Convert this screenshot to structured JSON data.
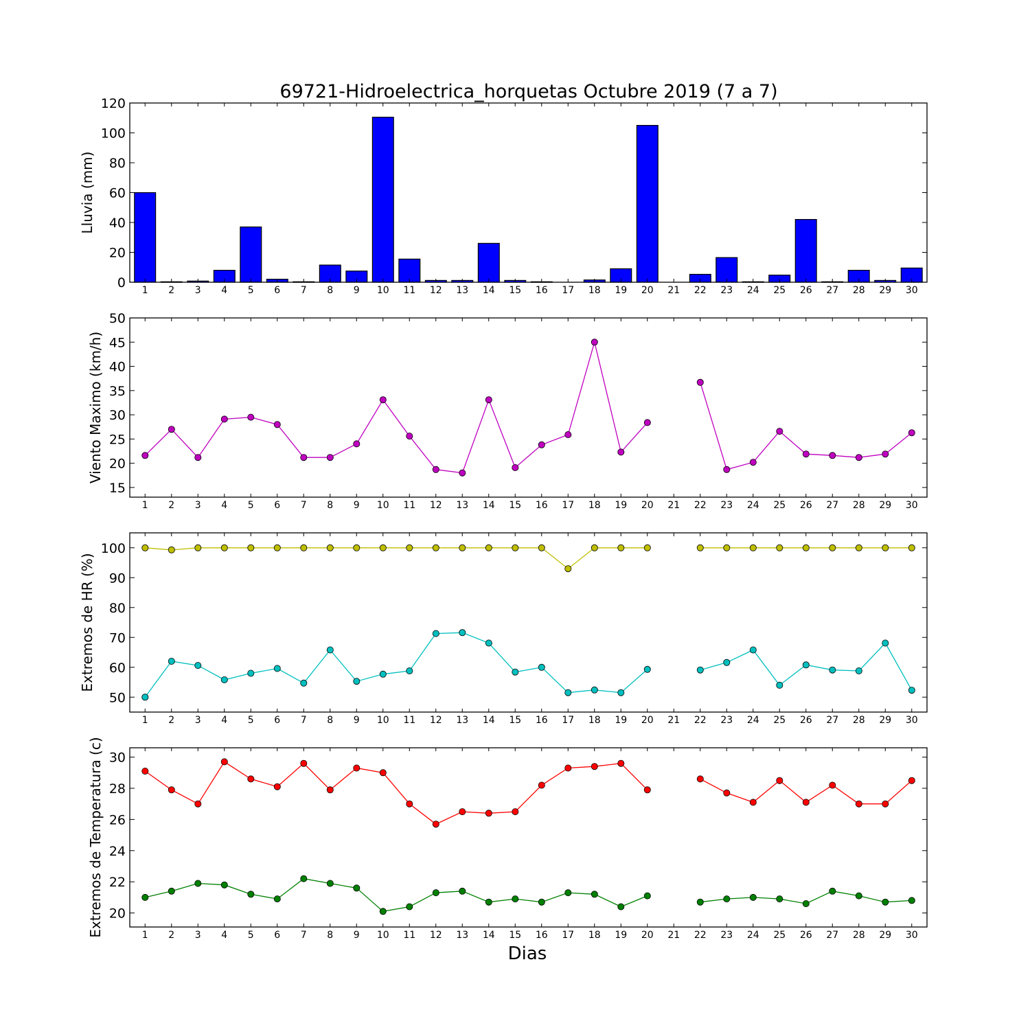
{
  "figure": {
    "title": "69721-Hidroelectrica_horquetas Octubre 2019  (7 a 7)",
    "xlabel": "Dias"
  },
  "chart_data": [
    {
      "type": "bar",
      "ylabel": "Lluvia (mm)",
      "ylim": [
        0,
        120
      ],
      "yticks": [
        0,
        20,
        40,
        60,
        80,
        100,
        120
      ],
      "categories": [
        1,
        2,
        3,
        4,
        5,
        6,
        7,
        8,
        9,
        10,
        11,
        12,
        13,
        14,
        15,
        16,
        17,
        18,
        19,
        20,
        21,
        22,
        23,
        24,
        25,
        26,
        27,
        28,
        29,
        30
      ],
      "series": [
        {
          "color": "#0000ff",
          "values": [
            60,
            0.3,
            0.8,
            8,
            37,
            2,
            0.3,
            11.5,
            7.5,
            110.5,
            15.5,
            1.2,
            1.2,
            26,
            1.2,
            0.3,
            0,
            1.5,
            9,
            105,
            0,
            5.3,
            16.5,
            0.3,
            4.8,
            42,
            0.3,
            8,
            1.2,
            9.5
          ]
        }
      ],
      "grid": false
    },
    {
      "type": "line",
      "ylabel": "Viento Maximo (km/h)",
      "ylim": [
        13,
        50
      ],
      "yticks": [
        15,
        20,
        25,
        30,
        35,
        40,
        45,
        50
      ],
      "x": [
        1,
        2,
        3,
        4,
        5,
        6,
        7,
        8,
        9,
        10,
        11,
        12,
        13,
        14,
        15,
        16,
        17,
        18,
        19,
        20,
        21,
        22,
        23,
        24,
        25,
        26,
        27,
        28,
        29,
        30
      ],
      "series": [
        {
          "color": "#bf00bf",
          "values": [
            21.6,
            27,
            21.2,
            29.1,
            29.5,
            28,
            21.2,
            21.2,
            24,
            33.1,
            25.6,
            18.7,
            18,
            33.1,
            19.1,
            23.8,
            25.9,
            45,
            22.3,
            28.4,
            null,
            36.7,
            18.7,
            20.2,
            26.6,
            21.9,
            21.6,
            21.2,
            21.9,
            26.3
          ]
        }
      ],
      "grid": false
    },
    {
      "type": "line",
      "ylabel": "Extremos de HR (%)",
      "ylim": [
        45,
        105
      ],
      "yticks": [
        50,
        60,
        70,
        80,
        90,
        100
      ],
      "x": [
        1,
        2,
        3,
        4,
        5,
        6,
        7,
        8,
        9,
        10,
        11,
        12,
        13,
        14,
        15,
        16,
        17,
        18,
        19,
        20,
        21,
        22,
        23,
        24,
        25,
        26,
        27,
        28,
        29,
        30
      ],
      "series": [
        {
          "color": "#bfbf00",
          "values": [
            100,
            99.3,
            100,
            100,
            100,
            100,
            100,
            100,
            100,
            100,
            100,
            100,
            100,
            100,
            100,
            100,
            93,
            100,
            100,
            100,
            null,
            100,
            100,
            100,
            100,
            100,
            100,
            100,
            100,
            100
          ]
        },
        {
          "color": "#00bfbf",
          "values": [
            50,
            62,
            60.6,
            55.8,
            58,
            59.6,
            54.7,
            65.8,
            55.3,
            57.7,
            58.8,
            71.3,
            71.6,
            68.1,
            58.4,
            60,
            51.5,
            52.4,
            51.5,
            59.3,
            null,
            59.1,
            61.6,
            65.8,
            54,
            60.8,
            59.1,
            58.8,
            68.1,
            52.3
          ]
        }
      ],
      "grid": false
    },
    {
      "type": "line",
      "ylabel": "Extremos de Temperatura (c)",
      "ylim": [
        19.1,
        30.6
      ],
      "yticks": [
        20,
        22,
        24,
        26,
        28,
        30
      ],
      "x": [
        1,
        2,
        3,
        4,
        5,
        6,
        7,
        8,
        9,
        10,
        11,
        12,
        13,
        14,
        15,
        16,
        17,
        18,
        19,
        20,
        21,
        22,
        23,
        24,
        25,
        26,
        27,
        28,
        29,
        30
      ],
      "series": [
        {
          "color": "#ff0000",
          "values": [
            29.1,
            27.9,
            27,
            29.7,
            28.6,
            28.1,
            29.6,
            27.9,
            29.3,
            29,
            27,
            25.7,
            26.5,
            26.4,
            26.5,
            28.2,
            29.3,
            29.4,
            29.6,
            27.9,
            null,
            28.6,
            27.7,
            27.1,
            28.5,
            27.1,
            28.2,
            27,
            27,
            28.5
          ]
        },
        {
          "color": "#008000",
          "values": [
            21,
            21.4,
            21.9,
            21.8,
            21.2,
            20.9,
            22.2,
            21.9,
            21.6,
            20.1,
            20.4,
            21.3,
            21.4,
            20.7,
            20.9,
            20.7,
            21.3,
            21.2,
            20.4,
            21.1,
            null,
            20.7,
            20.9,
            21,
            20.9,
            20.6,
            21.4,
            21.1,
            20.7,
            20.8
          ]
        }
      ],
      "grid": false
    }
  ]
}
